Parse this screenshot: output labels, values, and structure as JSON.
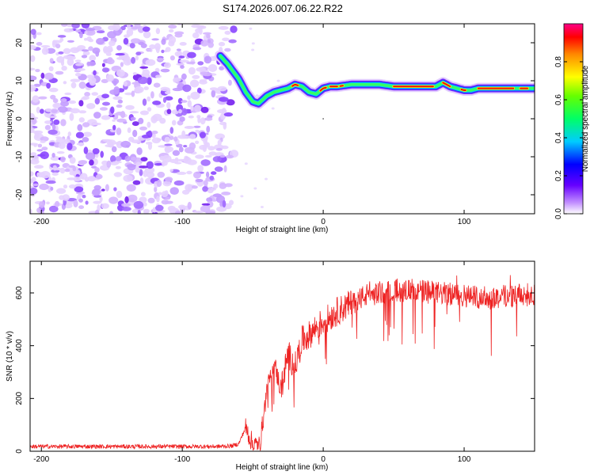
{
  "title": "S174.2026.007.06.22.R22",
  "chart_data": [
    {
      "type": "heatmap",
      "xlabel": "Height of straight line (km)",
      "ylabel": "Frequency (Hz)",
      "xlim": [
        -208,
        150
      ],
      "ylim": [
        -25,
        25
      ],
      "xticks": [
        -200,
        -100,
        0,
        100
      ],
      "yticks": [
        20,
        10,
        0,
        -10,
        -20
      ],
      "ridge": {
        "x": [
          -73,
          -68,
          -60,
          -55,
          -50,
          -46,
          -43,
          -40,
          -35,
          -30,
          -25,
          -20,
          -15,
          -10,
          -5,
          0,
          5,
          10,
          20,
          30,
          40,
          50,
          60,
          70,
          80,
          85,
          90,
          95,
          100,
          105,
          110,
          120,
          130,
          140,
          150
        ],
        "y": [
          16.5,
          14.5,
          10.5,
          7.0,
          4.5,
          4.0,
          5.0,
          6.0,
          7.0,
          7.5,
          8.0,
          9.0,
          8.5,
          7.0,
          6.5,
          8.0,
          8.5,
          8.5,
          9.0,
          9.0,
          9.0,
          8.5,
          8.5,
          8.5,
          8.5,
          9.5,
          8.5,
          8.0,
          7.5,
          7.5,
          8.0,
          8.0,
          8.0,
          8.0,
          8.0
        ]
      },
      "noise_region_x": [
        -208,
        -63
      ],
      "colorbar": {
        "label": "Normalized spectral amplitude",
        "range": [
          0.0,
          1.0
        ],
        "ticks": [
          0.0,
          0.2,
          0.4,
          0.6,
          0.8
        ]
      }
    },
    {
      "type": "line",
      "xlabel": "Height of straight line (km)",
      "ylabel": "SNR (10 * v/v)",
      "xlim": [
        -208,
        150
      ],
      "ylim": [
        0,
        720
      ],
      "xticks": [
        -200,
        -100,
        0,
        100
      ],
      "yticks": [
        0,
        200,
        400,
        600
      ],
      "series": [
        {
          "name": "SNR",
          "color": "#ee2222",
          "x": [
            -208,
            -150,
            -100,
            -75,
            -65,
            -60,
            -55,
            -50,
            -45,
            -40,
            -35,
            -30,
            -25,
            -20,
            -15,
            -10,
            -5,
            0,
            10,
            20,
            30,
            40,
            50,
            60,
            70,
            80,
            90,
            100,
            110,
            120,
            130,
            140,
            150
          ],
          "y": [
            18,
            18,
            18,
            18,
            20,
            28,
            90,
            25,
            22,
            230,
            340,
            230,
            370,
            320,
            420,
            440,
            470,
            490,
            530,
            560,
            590,
            600,
            610,
            610,
            605,
            600,
            595,
            590,
            585,
            580,
            590,
            590,
            595
          ]
        }
      ]
    }
  ]
}
